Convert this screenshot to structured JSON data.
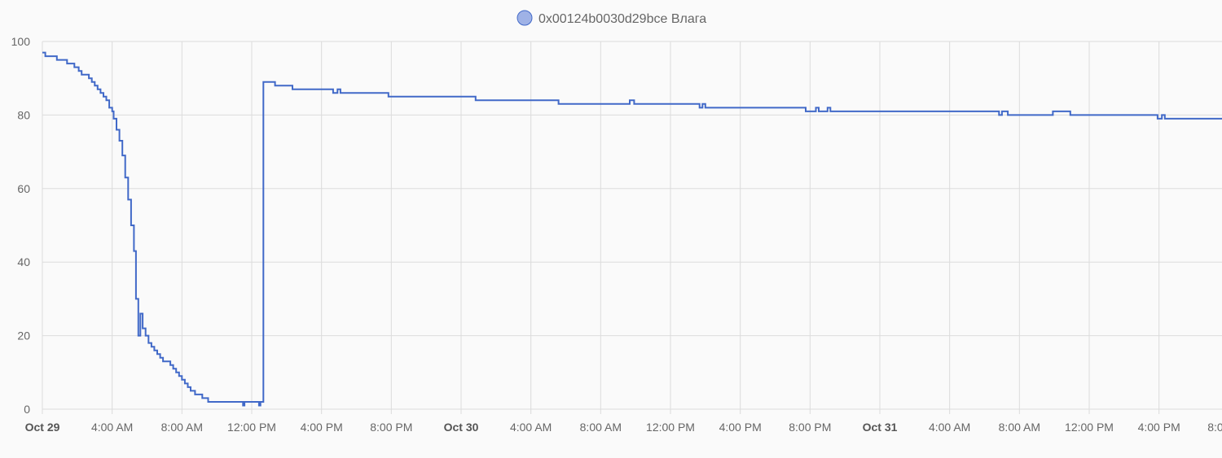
{
  "chart_data": {
    "type": "line",
    "step": true,
    "legend_position": "top-center",
    "grid": true,
    "ylim": [
      0,
      100
    ],
    "y_ticks": [
      "0",
      "20",
      "40",
      "60",
      "80",
      "100"
    ],
    "x_ticks": [
      {
        "label": "Oct 29",
        "bold": true
      },
      {
        "label": "4:00 AM",
        "bold": false
      },
      {
        "label": "8:00 AM",
        "bold": false
      },
      {
        "label": "12:00 PM",
        "bold": false
      },
      {
        "label": "4:00 PM",
        "bold": false
      },
      {
        "label": "8:00 PM",
        "bold": false
      },
      {
        "label": "Oct 30",
        "bold": true
      },
      {
        "label": "4:00 AM",
        "bold": false
      },
      {
        "label": "8:00 AM",
        "bold": false
      },
      {
        "label": "12:00 PM",
        "bold": false
      },
      {
        "label": "4:00 PM",
        "bold": false
      },
      {
        "label": "8:00 PM",
        "bold": false
      },
      {
        "label": "Oct 31",
        "bold": true
      },
      {
        "label": "4:00 AM",
        "bold": false
      },
      {
        "label": "8:00 AM",
        "bold": false
      },
      {
        "label": "12:00 PM",
        "bold": false
      },
      {
        "label": "4:00 PM",
        "bold": false
      },
      {
        "label": "8:00 PM",
        "bold": false
      }
    ],
    "series": [
      {
        "name": "0x00124b0030d29bce Влага",
        "color": "#4169c8",
        "legend_fill": "#9fb2e6",
        "points": [
          [
            "Oct 29 00:00",
            97
          ],
          [
            "Oct 29 00:10",
            96
          ],
          [
            "Oct 29 00:50",
            95
          ],
          [
            "Oct 29 01:25",
            94
          ],
          [
            "Oct 29 01:50",
            93
          ],
          [
            "Oct 29 02:05",
            92
          ],
          [
            "Oct 29 02:15",
            91
          ],
          [
            "Oct 29 02:40",
            90
          ],
          [
            "Oct 29 02:50",
            89
          ],
          [
            "Oct 29 03:00",
            88
          ],
          [
            "Oct 29 03:10",
            87
          ],
          [
            "Oct 29 03:20",
            86
          ],
          [
            "Oct 29 03:30",
            85
          ],
          [
            "Oct 29 03:40",
            84
          ],
          [
            "Oct 29 03:50",
            82
          ],
          [
            "Oct 29 04:00",
            81
          ],
          [
            "Oct 29 04:05",
            79
          ],
          [
            "Oct 29 04:15",
            76
          ],
          [
            "Oct 29 04:25",
            73
          ],
          [
            "Oct 29 04:35",
            69
          ],
          [
            "Oct 29 04:45",
            63
          ],
          [
            "Oct 29 04:55",
            57
          ],
          [
            "Oct 29 05:05",
            50
          ],
          [
            "Oct 29 05:15",
            43
          ],
          [
            "Oct 29 05:22",
            30
          ],
          [
            "Oct 29 05:30",
            20
          ],
          [
            "Oct 29 05:37",
            26
          ],
          [
            "Oct 29 05:45",
            22
          ],
          [
            "Oct 29 05:55",
            20
          ],
          [
            "Oct 29 06:05",
            18
          ],
          [
            "Oct 29 06:15",
            17
          ],
          [
            "Oct 29 06:25",
            16
          ],
          [
            "Oct 29 06:35",
            15
          ],
          [
            "Oct 29 06:45",
            14
          ],
          [
            "Oct 29 06:55",
            13
          ],
          [
            "Oct 29 07:20",
            12
          ],
          [
            "Oct 29 07:30",
            11
          ],
          [
            "Oct 29 07:40",
            10
          ],
          [
            "Oct 29 07:50",
            9
          ],
          [
            "Oct 29 08:00",
            8
          ],
          [
            "Oct 29 08:10",
            7
          ],
          [
            "Oct 29 08:20",
            6
          ],
          [
            "Oct 29 08:30",
            5
          ],
          [
            "Oct 29 08:45",
            4
          ],
          [
            "Oct 29 09:10",
            3
          ],
          [
            "Oct 29 09:30",
            2
          ],
          [
            "Oct 29 11:30",
            1
          ],
          [
            "Oct 29 11:35",
            2
          ],
          [
            "Oct 29 12:25",
            1
          ],
          [
            "Oct 29 12:30",
            2
          ],
          [
            "Oct 29 12:40",
            89
          ],
          [
            "Oct 29 13:20",
            88
          ],
          [
            "Oct 29 14:20",
            87
          ],
          [
            "Oct 29 16:40",
            86
          ],
          [
            "Oct 29 16:55",
            87
          ],
          [
            "Oct 29 17:05",
            86
          ],
          [
            "Oct 29 19:50",
            85
          ],
          [
            "Oct 30 00:50",
            84
          ],
          [
            "Oct 30 05:35",
            83
          ],
          [
            "Oct 30 09:40",
            84
          ],
          [
            "Oct 30 09:55",
            83
          ],
          [
            "Oct 30 13:40",
            82
          ],
          [
            "Oct 30 13:50",
            83
          ],
          [
            "Oct 30 14:00",
            82
          ],
          [
            "Oct 30 19:45",
            81
          ],
          [
            "Oct 30 20:20",
            82
          ],
          [
            "Oct 30 20:30",
            81
          ],
          [
            "Oct 30 21:00",
            82
          ],
          [
            "Oct 30 21:10",
            81
          ],
          [
            "Oct 31 06:50",
            80
          ],
          [
            "Oct 31 07:00",
            81
          ],
          [
            "Oct 31 07:20",
            80
          ],
          [
            "Oct 31 09:55",
            81
          ],
          [
            "Oct 31 10:55",
            80
          ],
          [
            "Oct 31 15:55",
            79
          ],
          [
            "Oct 31 16:10",
            80
          ],
          [
            "Oct 31 16:20",
            79
          ],
          [
            "Oct 31 20:00",
            78
          ],
          [
            "Oct 31 20:15",
            78
          ]
        ]
      }
    ]
  }
}
